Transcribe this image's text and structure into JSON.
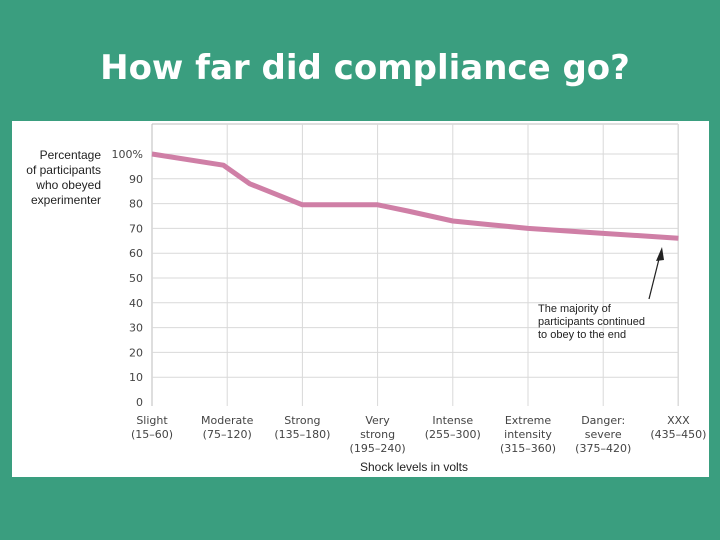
{
  "slide": {
    "title": "How far did compliance go?"
  },
  "chart_data": {
    "type": "line",
    "ylabel_lines": [
      "Percentage",
      "of participants",
      "who obeyed",
      "experimenter"
    ],
    "xlabel": "Shock levels in volts",
    "ylim": [
      0,
      100
    ],
    "yticks": [
      0,
      10,
      20,
      30,
      40,
      50,
      60,
      70,
      80,
      90,
      100
    ],
    "ytick_labels": [
      "0",
      "10",
      "20",
      "30",
      "40",
      "50",
      "60",
      "70",
      "80",
      "90",
      "100%"
    ],
    "categories": [
      {
        "lines": [
          "Slight",
          "(15–60)"
        ]
      },
      {
        "lines": [
          "Moderate",
          "(75–120)"
        ]
      },
      {
        "lines": [
          "Strong",
          "(135–180)"
        ]
      },
      {
        "lines": [
          "Very",
          "strong",
          "(195–240)"
        ]
      },
      {
        "lines": [
          "Intense",
          "(255–300)"
        ]
      },
      {
        "lines": [
          "Extreme",
          "intensity",
          "(315–360)"
        ]
      },
      {
        "lines": [
          "Danger:",
          "severe",
          "(375–420)"
        ]
      },
      {
        "lines": [
          "XXX",
          "(435–450)"
        ]
      }
    ],
    "series": [
      {
        "color": "#cf7fa6",
        "points": [
          [
            0,
            100
          ],
          [
            0.95,
            95.5
          ],
          [
            1.3,
            88
          ],
          [
            2.0,
            79.5
          ],
          [
            3.0,
            79.5
          ],
          [
            3.4,
            77
          ],
          [
            4.0,
            73
          ],
          [
            4.5,
            71.5
          ],
          [
            5.0,
            70
          ],
          [
            6.0,
            68
          ],
          [
            6.5,
            67
          ],
          [
            7.0,
            66
          ]
        ]
      }
    ],
    "grid": true,
    "annotation": {
      "lines": [
        "The majority of",
        "participants continued",
        "to obey to the end"
      ]
    }
  }
}
